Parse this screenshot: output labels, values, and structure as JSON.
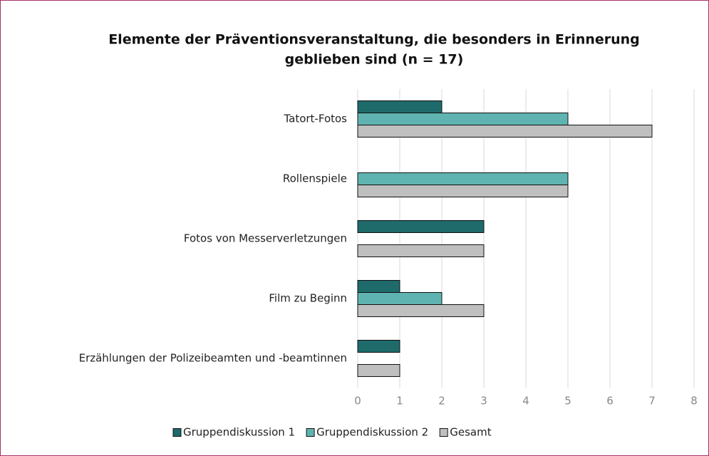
{
  "chart_data": {
    "type": "hbar",
    "title": [
      "Elemente der Präventionsveranstaltung, die besonders in Erinnerung",
      "geblieben sind (n = 17)"
    ],
    "categories": [
      "Tatort-Fotos",
      "Rollenspiele",
      "Fotos von Messerverletzungen",
      "Film zu Beginn",
      "Erzählungen der Polizeibeamten und -beamtinnen"
    ],
    "series": [
      {
        "name": "Gruppendiskussion 1",
        "color": "#1f6b6c",
        "values": [
          2,
          0,
          3,
          1,
          1
        ]
      },
      {
        "name": "Gruppendiskussion 2",
        "color": "#5fb4b1",
        "values": [
          5,
          5,
          0,
          2,
          0
        ]
      },
      {
        "name": "Gesamt",
        "color": "#bfbfbf",
        "values": [
          7,
          5,
          3,
          3,
          1
        ]
      }
    ],
    "xlim": [
      0,
      8
    ],
    "xticks": [
      0,
      1,
      2,
      3,
      4,
      5,
      6,
      7,
      8
    ],
    "grid": true,
    "legend": "bottom"
  }
}
